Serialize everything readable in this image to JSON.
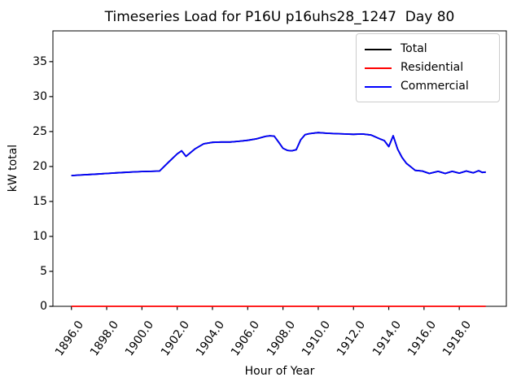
{
  "figure": {
    "title": "Timeseries Load for P16U p16uhs28_1247  Day 80",
    "xlabel": "Hour of Year",
    "ylabel": "kW total"
  },
  "legend": {
    "position": "upper right",
    "items": [
      {
        "label": "Total",
        "color": "#000000"
      },
      {
        "label": "Residential",
        "color": "#ff0000"
      },
      {
        "label": "Commercial",
        "color": "#0000ff"
      }
    ]
  },
  "chart_data": {
    "type": "line",
    "title": "Timeseries Load for P16U p16uhs28_1247  Day 80",
    "xlabel": "Hour of Year",
    "ylabel": "kW total",
    "xlim": [
      1894.95,
      1920.67
    ],
    "ylim": [
      0,
      39.4
    ],
    "xticks": [
      1896,
      1898,
      1900,
      1902,
      1904,
      1906,
      1908,
      1910,
      1912,
      1914,
      1916,
      1918
    ],
    "xtick_labels": [
      "1896.0",
      "1898.0",
      "1900.0",
      "1902.0",
      "1904.0",
      "1906.0",
      "1908.0",
      "1910.0",
      "1912.0",
      "1914.0",
      "1916.0",
      "1918.0"
    ],
    "yticks": [
      0,
      5,
      10,
      15,
      20,
      25,
      30,
      35
    ],
    "ytick_labels": [
      "0",
      "5",
      "10",
      "15",
      "20",
      "25",
      "30",
      "35"
    ],
    "grid": false,
    "legend_position": "upper right",
    "series": [
      {
        "name": "Total",
        "color": "#000000",
        "x": [
          1896.0,
          1896.5,
          1897.0,
          1897.5,
          1898.0,
          1898.5,
          1899.0,
          1899.5,
          1900.0,
          1900.5,
          1901.0,
          1901.5,
          1902.0,
          1902.25,
          1902.5,
          1903.0,
          1903.5,
          1904.0,
          1904.5,
          1905.0,
          1905.5,
          1906.0,
          1906.5,
          1907.0,
          1907.25,
          1907.5,
          1907.75,
          1908.0,
          1908.25,
          1908.5,
          1908.75,
          1909.0,
          1909.25,
          1909.5,
          1910.0,
          1910.5,
          1911.0,
          1911.5,
          1912.0,
          1912.5,
          1913.0,
          1913.5,
          1913.75,
          1914.0,
          1914.25,
          1914.5,
          1914.75,
          1915.0,
          1915.25,
          1915.5,
          1915.9,
          1916.3,
          1916.8,
          1917.2,
          1917.6,
          1918.0,
          1918.4,
          1918.8,
          1919.1,
          1919.3,
          1919.5
        ],
        "y": [
          18.7,
          18.78,
          18.85,
          18.92,
          19.0,
          19.08,
          19.15,
          19.22,
          19.28,
          19.3,
          19.35,
          20.6,
          21.8,
          22.25,
          21.45,
          22.5,
          23.25,
          23.45,
          23.5,
          23.5,
          23.6,
          23.75,
          23.95,
          24.3,
          24.4,
          24.35,
          23.5,
          22.6,
          22.3,
          22.25,
          22.4,
          23.8,
          24.55,
          24.7,
          24.85,
          24.75,
          24.7,
          24.65,
          24.6,
          24.65,
          24.5,
          23.95,
          23.7,
          22.85,
          24.4,
          22.5,
          21.3,
          20.45,
          19.95,
          19.45,
          19.35,
          19.0,
          19.3,
          19.0,
          19.3,
          19.05,
          19.35,
          19.1,
          19.4,
          19.15,
          19.2
        ]
      },
      {
        "name": "Residential",
        "color": "#ff0000",
        "x": [
          1896.0,
          1919.5
        ],
        "y": [
          0,
          0
        ]
      },
      {
        "name": "Commercial",
        "color": "#0000ff",
        "x": [
          1896.0,
          1896.5,
          1897.0,
          1897.5,
          1898.0,
          1898.5,
          1899.0,
          1899.5,
          1900.0,
          1900.5,
          1901.0,
          1901.5,
          1902.0,
          1902.25,
          1902.5,
          1903.0,
          1903.5,
          1904.0,
          1904.5,
          1905.0,
          1905.5,
          1906.0,
          1906.5,
          1907.0,
          1907.25,
          1907.5,
          1907.75,
          1908.0,
          1908.25,
          1908.5,
          1908.75,
          1909.0,
          1909.25,
          1909.5,
          1910.0,
          1910.5,
          1911.0,
          1911.5,
          1912.0,
          1912.5,
          1913.0,
          1913.5,
          1913.75,
          1914.0,
          1914.25,
          1914.5,
          1914.75,
          1915.0,
          1915.25,
          1915.5,
          1915.9,
          1916.3,
          1916.8,
          1917.2,
          1917.6,
          1918.0,
          1918.4,
          1918.8,
          1919.1,
          1919.3,
          1919.5
        ],
        "y": [
          18.7,
          18.78,
          18.85,
          18.92,
          19.0,
          19.08,
          19.15,
          19.22,
          19.28,
          19.3,
          19.35,
          20.6,
          21.8,
          22.25,
          21.45,
          22.5,
          23.25,
          23.45,
          23.5,
          23.5,
          23.6,
          23.75,
          23.95,
          24.3,
          24.4,
          24.35,
          23.5,
          22.6,
          22.3,
          22.25,
          22.4,
          23.8,
          24.55,
          24.7,
          24.85,
          24.75,
          24.7,
          24.65,
          24.6,
          24.65,
          24.5,
          23.95,
          23.7,
          22.85,
          24.4,
          22.5,
          21.3,
          20.45,
          19.95,
          19.45,
          19.35,
          19.0,
          19.3,
          19.0,
          19.3,
          19.05,
          19.35,
          19.1,
          19.4,
          19.15,
          19.2
        ]
      }
    ]
  }
}
